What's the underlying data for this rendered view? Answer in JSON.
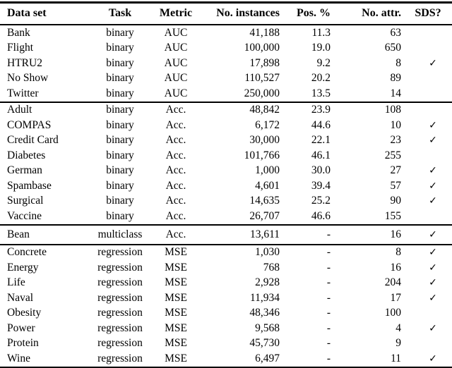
{
  "table": {
    "columns": [
      {
        "label": "Data set",
        "align": "left"
      },
      {
        "label": "Task",
        "align": "center"
      },
      {
        "label": "Metric",
        "align": "center"
      },
      {
        "label": "No. instances",
        "align": "right"
      },
      {
        "label": "Pos. %",
        "align": "right"
      },
      {
        "label": "No. attr.",
        "align": "right"
      },
      {
        "label": "SDS?",
        "align": "center"
      }
    ],
    "checkmark_glyph": "✓",
    "no_value_glyph": "-",
    "groups": [
      {
        "rows": [
          [
            "Bank",
            "binary",
            "AUC",
            "41,188",
            "11.3",
            "63",
            ""
          ],
          [
            "Flight",
            "binary",
            "AUC",
            "100,000",
            "19.0",
            "650",
            ""
          ],
          [
            "HTRU2",
            "binary",
            "AUC",
            "17,898",
            "9.2",
            "8",
            "✓"
          ],
          [
            "No Show",
            "binary",
            "AUC",
            "110,527",
            "20.2",
            "89",
            ""
          ],
          [
            "Twitter",
            "binary",
            "AUC",
            "250,000",
            "13.5",
            "14",
            ""
          ]
        ]
      },
      {
        "rows": [
          [
            "Adult",
            "binary",
            "Acc.",
            "48,842",
            "23.9",
            "108",
            ""
          ],
          [
            "COMPAS",
            "binary",
            "Acc.",
            "6,172",
            "44.6",
            "10",
            "✓"
          ],
          [
            "Credit Card",
            "binary",
            "Acc.",
            "30,000",
            "22.1",
            "23",
            "✓"
          ],
          [
            "Diabetes",
            "binary",
            "Acc.",
            "101,766",
            "46.1",
            "255",
            ""
          ],
          [
            "German",
            "binary",
            "Acc.",
            "1,000",
            "30.0",
            "27",
            "✓"
          ],
          [
            "Spambase",
            "binary",
            "Acc.",
            "4,601",
            "39.4",
            "57",
            "✓"
          ],
          [
            "Surgical",
            "binary",
            "Acc.",
            "14,635",
            "25.2",
            "90",
            "✓"
          ],
          [
            "Vaccine",
            "binary",
            "Acc.",
            "26,707",
            "46.6",
            "155",
            ""
          ]
        ]
      },
      {
        "rows": [
          [
            "Bean",
            "multiclass",
            "Acc.",
            "13,611",
            "-",
            "16",
            "✓"
          ]
        ]
      },
      {
        "rows": [
          [
            "Concrete",
            "regression",
            "MSE",
            "1,030",
            "-",
            "8",
            "✓"
          ],
          [
            "Energy",
            "regression",
            "MSE",
            "768",
            "-",
            "16",
            "✓"
          ],
          [
            "Life",
            "regression",
            "MSE",
            "2,928",
            "-",
            "204",
            "✓"
          ],
          [
            "Naval",
            "regression",
            "MSE",
            "11,934",
            "-",
            "17",
            "✓"
          ],
          [
            "Obesity",
            "regression",
            "MSE",
            "48,346",
            "-",
            "100",
            ""
          ],
          [
            "Power",
            "regression",
            "MSE",
            "9,568",
            "-",
            "4",
            "✓"
          ],
          [
            "Protein",
            "regression",
            "MSE",
            "45,730",
            "-",
            "9",
            ""
          ],
          [
            "Wine",
            "regression",
            "MSE",
            "6,497",
            "-",
            "11",
            "✓"
          ]
        ]
      }
    ]
  },
  "colors": {
    "text": "#000000",
    "background": "#ffffff",
    "rule": "#000000"
  }
}
